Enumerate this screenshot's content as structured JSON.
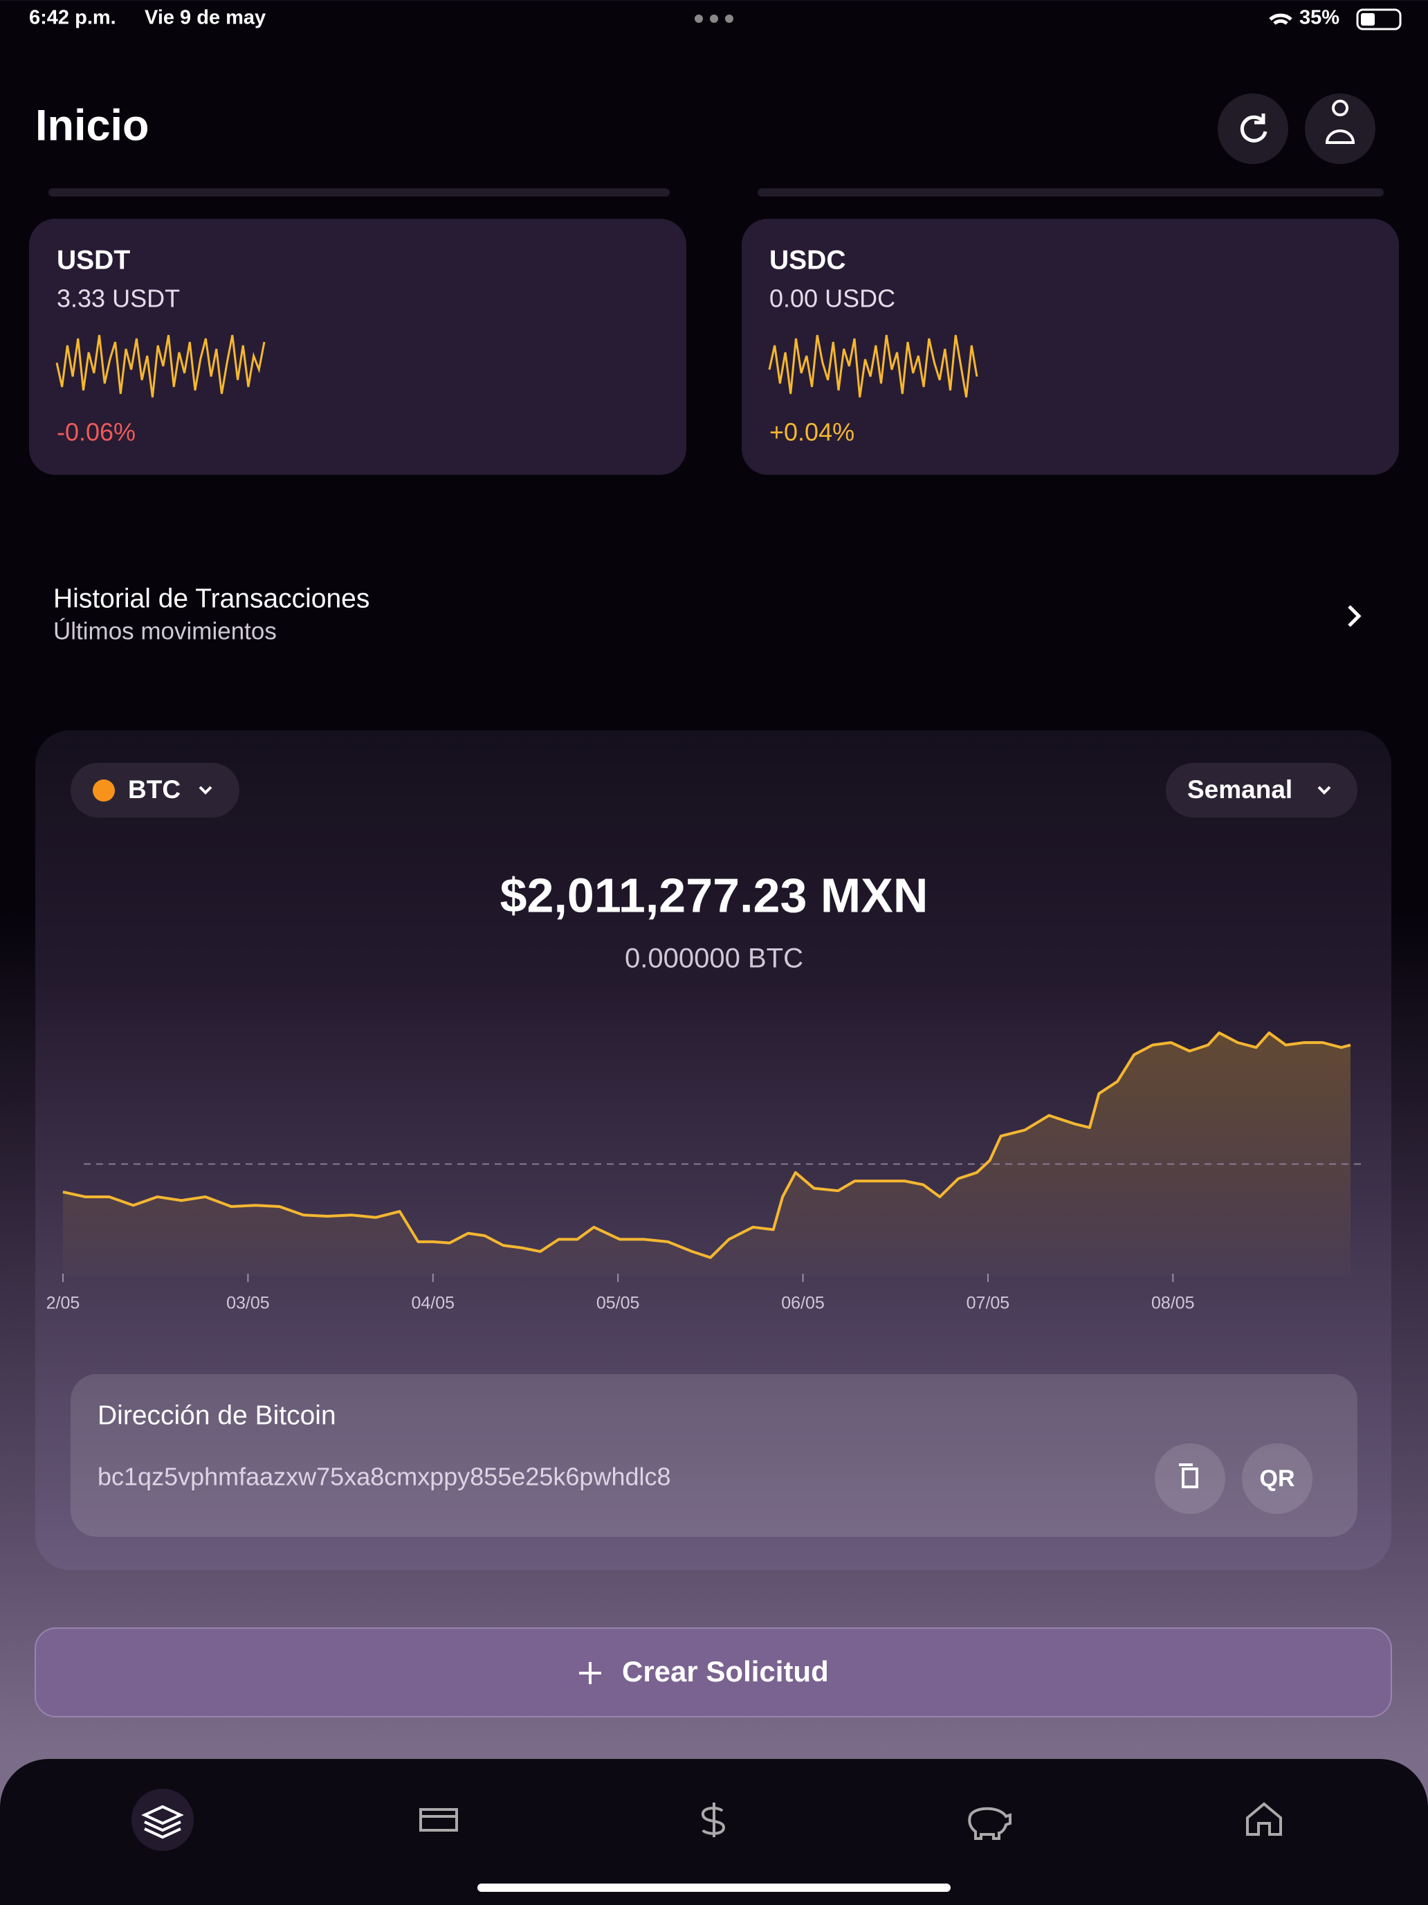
{
  "status_bar": {
    "time": "6:42 p.m.",
    "date": "Vie 9 de may",
    "battery": "35%"
  },
  "header": {
    "title": "Inicio"
  },
  "cards": [
    {
      "title": "USDT",
      "balance": "3.33 USDT",
      "change": "-0.06%",
      "color": "#f5b731",
      "change_color": "#f05a5a",
      "sparkline": [
        55,
        20,
        80,
        35,
        90,
        15,
        70,
        40,
        95,
        25,
        60,
        85,
        10,
        75,
        45,
        90,
        30,
        65,
        5,
        80,
        50,
        95,
        20,
        70,
        40,
        85,
        15,
        60,
        90,
        35,
        75,
        10,
        55,
        95,
        30,
        80,
        20,
        65,
        45,
        85
      ]
    },
    {
      "title": "USDC",
      "balance": "0.00 USDC",
      "change": "+0.04%",
      "color": "#f5b731",
      "change_color": "#f5b731",
      "sparkline": [
        45,
        80,
        25,
        70,
        10,
        90,
        40,
        65,
        20,
        95,
        55,
        30,
        85,
        15,
        75,
        50,
        90,
        5,
        60,
        35,
        80,
        25,
        95,
        45,
        70,
        10,
        85,
        40,
        65,
        20,
        90,
        55,
        30,
        75,
        15,
        95,
        50,
        5,
        80,
        35
      ]
    }
  ],
  "history": {
    "title": "Historial de Transacciones",
    "subtitle": "Últimos movimientos"
  },
  "panel": {
    "asset": "BTC",
    "period": "Semanal",
    "price": "$2,011,277.23 MXN",
    "amount": "0.000000 BTC"
  },
  "chart_data": {
    "type": "line",
    "color": "#f5b731",
    "fill": true,
    "x": [
      2.0,
      2.12,
      2.25,
      2.38,
      2.51,
      2.64,
      2.77,
      2.91,
      3.04,
      3.17,
      3.3,
      3.43,
      3.56,
      3.69,
      3.82,
      3.92,
      4.0,
      4.09,
      4.19,
      4.28,
      4.38,
      4.48,
      4.58,
      4.68,
      4.78,
      4.87,
      5.01,
      5.14,
      5.27,
      5.4,
      5.5,
      5.6,
      5.73,
      5.84,
      5.89,
      5.96,
      6.06,
      6.19,
      6.28,
      6.38,
      6.55,
      6.65,
      6.74,
      6.84,
      6.94,
      7.01,
      7.07,
      7.2,
      7.33,
      7.47,
      7.55,
      7.6,
      7.7,
      7.79,
      7.89,
      7.99,
      8.09,
      8.19,
      8.25,
      8.35,
      8.45,
      8.52,
      8.61,
      8.71,
      8.81,
      8.91,
      8.96
    ],
    "values": [
      69,
      65,
      65,
      58,
      65,
      62,
      65,
      57,
      58,
      57,
      50,
      49,
      50,
      48,
      53,
      28,
      28,
      27,
      35,
      33,
      25,
      23,
      20,
      30,
      30,
      40,
      30,
      30,
      28,
      20,
      15,
      30,
      40,
      38,
      65,
      85,
      72,
      70,
      78,
      78,
      78,
      75,
      65,
      80,
      85,
      95,
      115,
      120,
      132,
      125,
      122,
      150,
      160,
      182,
      190,
      192,
      185,
      190,
      200,
      192,
      188,
      200,
      190,
      192,
      192,
      188,
      190
    ],
    "reference_line": 92,
    "xlim": [
      2,
      8.96
    ],
    "ylim": [
      0,
      220
    ],
    "xticks": [
      {
        "value": 2,
        "label": "2/05"
      },
      {
        "value": 3,
        "label": "03/05"
      },
      {
        "value": 4,
        "label": "04/05"
      },
      {
        "value": 5,
        "label": "05/05"
      },
      {
        "value": 6,
        "label": "06/05"
      },
      {
        "value": 7,
        "label": "07/05"
      },
      {
        "value": 8,
        "label": "08/05"
      }
    ]
  },
  "address": {
    "title": "Dirección de Bitcoin",
    "value": "bc1qz5vphmfaazxw75xa8cmxppy855e25k6pwhdlc8",
    "qr": "QR"
  },
  "action": {
    "label": "Crear Solicitud"
  }
}
